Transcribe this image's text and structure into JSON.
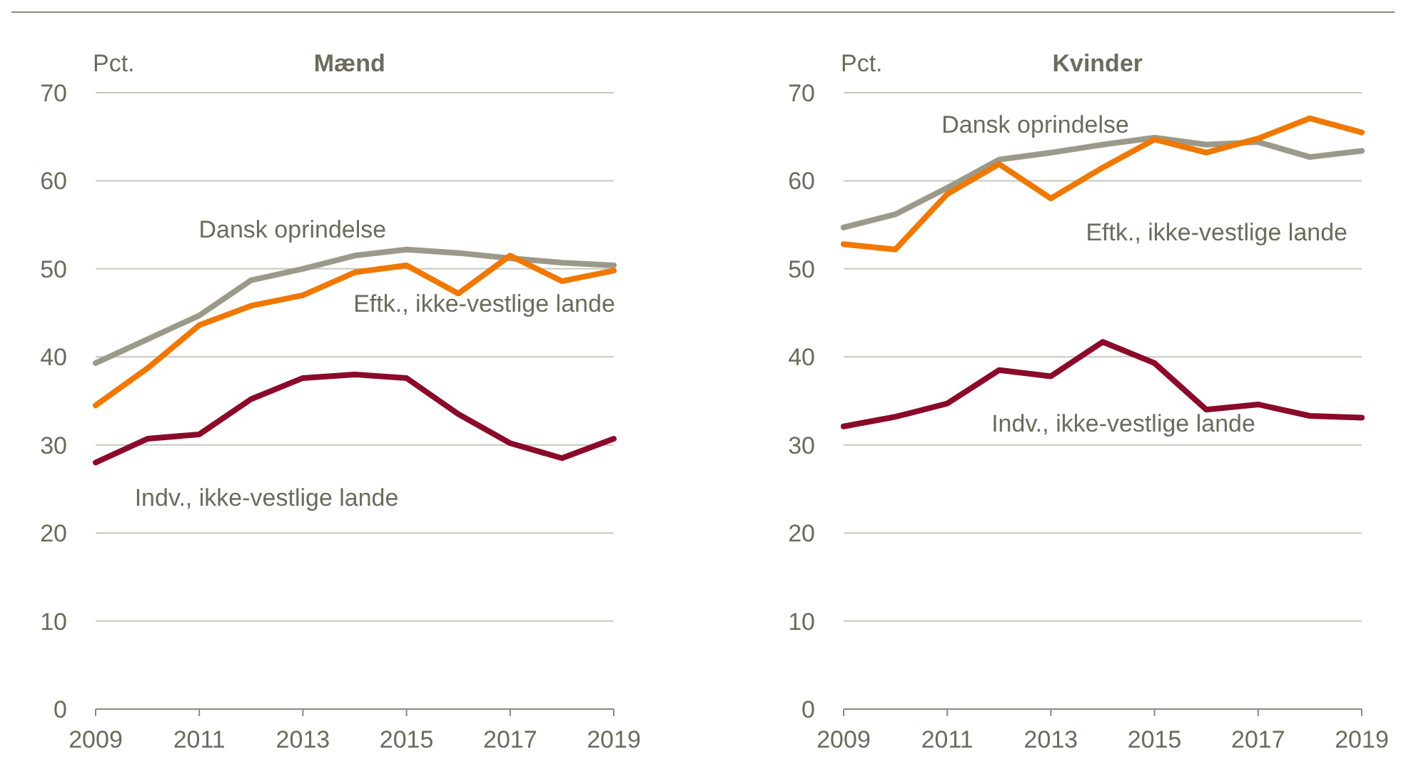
{
  "chart_data": [
    {
      "type": "line",
      "title": "Mænd",
      "ylabel": "Pct.",
      "x": [
        2009,
        2010,
        2011,
        2012,
        2013,
        2014,
        2015,
        2016,
        2017,
        2018,
        2019
      ],
      "xlim": [
        2009,
        2019
      ],
      "xticks": [
        2009,
        2011,
        2013,
        2015,
        2017,
        2019
      ],
      "ylim": [
        0,
        70
      ],
      "yticks": [
        0,
        10,
        20,
        30,
        40,
        50,
        60,
        70
      ],
      "grid": "y",
      "legend": false,
      "marker": "none",
      "line_style": "solid",
      "series": [
        {
          "name": "Dansk oprindelse",
          "color": "#9b9a8a",
          "values": [
            39.3,
            42,
            44.7,
            48.7,
            50,
            51.5,
            52.2,
            51.8,
            51.2,
            50.7,
            50.4
          ]
        },
        {
          "name": "Eftk., ikke-vestlige lande",
          "color": "#f07800",
          "values": [
            34.5,
            38.7,
            43.6,
            45.8,
            47,
            49.6,
            50.4,
            47.2,
            51.5,
            48.6,
            49.8
          ]
        },
        {
          "name": "Indv., ikke-vestlige lande",
          "color": "#8b0a2a",
          "values": [
            28,
            30.7,
            31.2,
            35.2,
            37.6,
            38,
            37.6,
            33.5,
            30.2,
            28.5,
            30.7
          ]
        }
      ]
    },
    {
      "type": "line",
      "title": "Kvinder",
      "ylabel": "Pct.",
      "x": [
        2009,
        2010,
        2011,
        2012,
        2013,
        2014,
        2015,
        2016,
        2017,
        2018,
        2019
      ],
      "xlim": [
        2009,
        2019
      ],
      "xticks": [
        2009,
        2011,
        2013,
        2015,
        2017,
        2019
      ],
      "ylim": [
        0,
        70
      ],
      "yticks": [
        0,
        10,
        20,
        30,
        40,
        50,
        60,
        70
      ],
      "grid": "y",
      "legend": false,
      "marker": "none",
      "line_style": "solid",
      "series": [
        {
          "name": "Dansk oprindelse",
          "color": "#9b9a8a",
          "values": [
            54.7,
            56.2,
            59.2,
            62.4,
            63.2,
            64.1,
            64.9,
            64.1,
            64.4,
            62.7,
            63.4
          ]
        },
        {
          "name": "Eftk., ikke-vestlige lande",
          "color": "#f07800",
          "values": [
            52.8,
            52.2,
            58.5,
            61.9,
            58,
            61.5,
            64.7,
            63.2,
            64.8,
            67.1,
            65.5
          ]
        },
        {
          "name": "Indv., ikke-vestlige lande",
          "color": "#8b0a2a",
          "values": [
            32.1,
            33.2,
            34.7,
            38.5,
            37.8,
            41.7,
            39.3,
            34,
            34.6,
            33.3,
            33.1
          ]
        }
      ]
    }
  ]
}
